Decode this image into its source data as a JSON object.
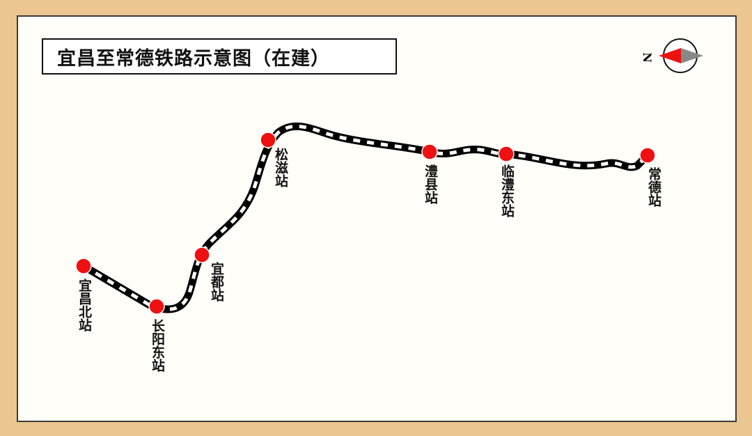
{
  "title": "宜昌至常德铁路示意图（在建）",
  "compass": {
    "north_label": "N",
    "colors": {
      "north": "#EE1111",
      "south": "#888888"
    }
  },
  "colors": {
    "background": "#ECC690",
    "station": "#EE1111",
    "track": "#000000"
  },
  "stations": [
    {
      "name": "宜昌北站"
    },
    {
      "name": "长阳东站"
    },
    {
      "name": "宜都站"
    },
    {
      "name": "松滋站"
    },
    {
      "name": "澧县站"
    },
    {
      "name": "临澧东站"
    },
    {
      "name": "常德站"
    }
  ]
}
